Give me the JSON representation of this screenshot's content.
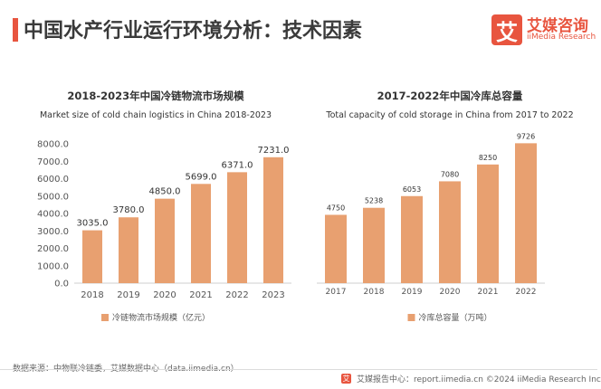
{
  "page_title": "中国水产行业运行环境分析：技术因素",
  "logo": {
    "mark": "艾",
    "name_cn": "艾媒咨询",
    "name_en": "iiMedia Research"
  },
  "source_text": "数据来源：中物联冷链委，艾媒数据中心（data.iimedia.cn）",
  "footer": {
    "mark": "艾",
    "text": "艾媒报告中心：report.iimedia.cn ©2024 iiMedia Research Inc"
  },
  "colors": {
    "accent": "#e8553f",
    "bar": "#e8a070",
    "text": "#333333",
    "axis_text": "#555555",
    "grid": "#e6e6e6"
  },
  "chart_data": [
    {
      "type": "bar",
      "title": "2018-2023年中国冷链物流市场规模",
      "subtitle": "Market size of cold chain logistics in China 2018-2023",
      "categories": [
        "2018",
        "2019",
        "2020",
        "2021",
        "2022",
        "2023"
      ],
      "values": [
        3035.0,
        3780.0,
        4850.0,
        5699.0,
        6371.0,
        7231.0
      ],
      "value_labels": [
        "3035.0",
        "3780.0",
        "4850.0",
        "5699.0",
        "6371.0",
        "7231.0"
      ],
      "legend": "冷链物流市场规模（亿元）",
      "ylim": [
        0,
        8000
      ],
      "yticks": [
        "0.0",
        "1000.0",
        "2000.0",
        "3000.0",
        "4000.0",
        "5000.0",
        "6000.0",
        "7000.0",
        "8000.0"
      ],
      "y_axis_shown": true,
      "grid": false,
      "legend_position": "bottom"
    },
    {
      "type": "bar",
      "title": "2017-2022年中国冷库总容量",
      "subtitle": "Total capacity of cold storage in China from 2017 to 2022",
      "categories": [
        "2017",
        "2018",
        "2019",
        "2020",
        "2021",
        "2022"
      ],
      "values": [
        4750,
        5238,
        6053,
        7080,
        8250,
        9726
      ],
      "value_labels": [
        "4750",
        "5238",
        "6053",
        "7080",
        "8250",
        "9726"
      ],
      "legend": "冷库总容量（万吨）",
      "ylim": [
        0,
        10000
      ],
      "y_axis_shown": false,
      "grid": false,
      "legend_position": "bottom"
    }
  ]
}
